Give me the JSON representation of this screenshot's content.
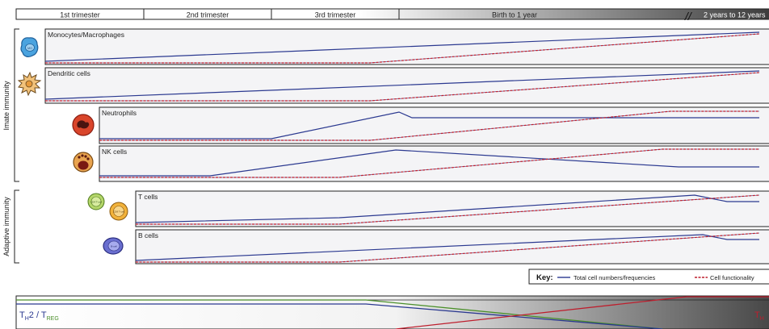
{
  "timeline": {
    "periods": [
      "1st trimester",
      "2nd trimester",
      "3rd trimester",
      "Birth to 1 year",
      "2 years to 12 years"
    ],
    "break_marker": "//"
  },
  "groups": {
    "innate": "Imate immunity",
    "adaptive": "Adaptive immunity"
  },
  "cells": [
    {
      "label": "Monocytes/Macrophages"
    },
    {
      "label": "Dendritic cells"
    },
    {
      "label": "Neutrophils"
    },
    {
      "label": "NK cells"
    },
    {
      "label": "T cells"
    },
    {
      "label": "B cells"
    }
  ],
  "icon_labels": {
    "monocyte": "MO",
    "cd4": "CD4 T-cell",
    "cd8": "CD8 T-cell",
    "bcell": "B-cell"
  },
  "key": {
    "title": "Key:",
    "total": "Total cell numbers/frequencies",
    "function": "Cell functionality"
  },
  "balance": {
    "left_main": "T",
    "left_sub1": "H",
    "left_mid": "2 / T",
    "left_sub2": "REG",
    "right_main": "T",
    "right_sub": "H"
  },
  "colors": {
    "total_line": "#2b3990",
    "function_line": "#be1e2d",
    "green_line": "#4a8f2a",
    "panel_bg": "#f4f4f6"
  }
}
